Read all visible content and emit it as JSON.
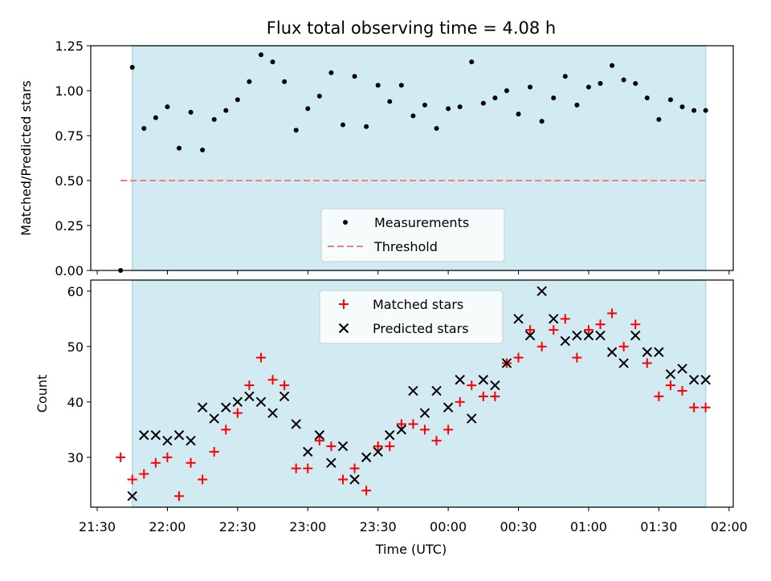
{
  "figure": {
    "title": "Flux total observing time = 4.08 h",
    "xlabel": "Time (UTC)"
  },
  "colors": {
    "shade": "#add8e6",
    "threshold": "#f08080",
    "matched": "#ff0000",
    "predicted": "#000000",
    "measurements": "#000000"
  },
  "chart_data": [
    {
      "type": "scatter",
      "panel": "top",
      "ylabel": "Matched/Predicted stars",
      "ylim": [
        0,
        1.25
      ],
      "yticks": [
        "0.00",
        "0.25",
        "0.50",
        "0.75",
        "1.00",
        "1.25"
      ],
      "xticks": [
        "21:30",
        "22:00",
        "22:30",
        "23:00",
        "23:30",
        "00:00",
        "00:30",
        "01:00",
        "01:30",
        "02:00"
      ],
      "shaded_span": [
        "21:45",
        "01:50"
      ],
      "legend": {
        "placement": "lower center",
        "entries": [
          "Measurements",
          "Threshold"
        ]
      },
      "series": [
        {
          "name": "Measurements",
          "marker": "dot",
          "x": [
            "21:40",
            "21:45",
            "21:50",
            "21:55",
            "22:00",
            "22:05",
            "22:10",
            "22:15",
            "22:20",
            "22:25",
            "22:30",
            "22:35",
            "22:40",
            "22:45",
            "22:50",
            "22:55",
            "23:00",
            "23:05",
            "23:10",
            "23:15",
            "23:20",
            "23:25",
            "23:30",
            "23:35",
            "23:40",
            "23:45",
            "23:50",
            "23:55",
            "00:00",
            "00:05",
            "00:10",
            "00:15",
            "00:20",
            "00:25",
            "00:30",
            "00:35",
            "00:40",
            "00:45",
            "00:50",
            "00:55",
            "01:00",
            "01:05",
            "01:10",
            "01:15",
            "01:20",
            "01:25",
            "01:30",
            "01:35",
            "01:40",
            "01:45",
            "01:50"
          ],
          "y": [
            0.0,
            1.13,
            0.79,
            0.85,
            0.91,
            0.68,
            0.88,
            0.67,
            0.84,
            0.89,
            0.95,
            1.05,
            1.2,
            1.16,
            1.05,
            0.78,
            0.9,
            0.97,
            1.1,
            0.81,
            1.08,
            0.8,
            1.03,
            0.94,
            1.03,
            0.86,
            0.92,
            0.79,
            0.9,
            0.91,
            1.16,
            0.93,
            0.96,
            1.0,
            0.87,
            1.02,
            0.83,
            0.96,
            1.08,
            0.92,
            1.02,
            1.04,
            1.14,
            1.06,
            1.04,
            0.96,
            0.84,
            0.95,
            0.91,
            0.89,
            0.89
          ]
        },
        {
          "name": "Threshold",
          "style": "dashed",
          "x": [
            "21:40",
            "01:50"
          ],
          "y": [
            0.5,
            0.5
          ]
        }
      ]
    },
    {
      "type": "scatter",
      "panel": "bottom",
      "ylabel": "Count",
      "ylim": [
        21,
        62
      ],
      "yticks": [
        "30",
        "40",
        "50",
        "60"
      ],
      "xticks": [
        "21:30",
        "22:00",
        "22:30",
        "23:00",
        "23:30",
        "00:00",
        "00:30",
        "01:00",
        "01:30",
        "02:00"
      ],
      "shaded_span": [
        "21:45",
        "01:50"
      ],
      "legend": {
        "placement": "upper center",
        "entries": [
          "Matched stars",
          "Predicted stars"
        ]
      },
      "series": [
        {
          "name": "Matched stars",
          "marker": "plus",
          "x": [
            "21:40",
            "21:45",
            "21:50",
            "21:55",
            "22:00",
            "22:05",
            "22:10",
            "22:15",
            "22:20",
            "22:25",
            "22:30",
            "22:35",
            "22:40",
            "22:45",
            "22:50",
            "22:55",
            "23:00",
            "23:05",
            "23:10",
            "23:15",
            "23:20",
            "23:25",
            "23:30",
            "23:35",
            "23:40",
            "23:45",
            "23:50",
            "23:55",
            "00:00",
            "00:05",
            "00:10",
            "00:15",
            "00:20",
            "00:25",
            "00:30",
            "00:35",
            "00:40",
            "00:45",
            "00:50",
            "00:55",
            "01:00",
            "01:05",
            "01:10",
            "01:15",
            "01:20",
            "01:25",
            "01:30",
            "01:35",
            "01:40",
            "01:45",
            "01:50"
          ],
          "y": [
            30,
            26,
            27,
            29,
            30,
            23,
            29,
            26,
            31,
            35,
            38,
            43,
            48,
            44,
            43,
            28,
            28,
            33,
            32,
            26,
            28,
            24,
            32,
            32,
            36,
            36,
            35,
            33,
            35,
            40,
            43,
            41,
            41,
            47,
            48,
            53,
            50,
            53,
            55,
            48,
            53,
            54,
            56,
            50,
            54,
            47,
            41,
            43,
            42,
            39,
            39
          ]
        },
        {
          "name": "Predicted stars",
          "marker": "x",
          "x": [
            "21:45",
            "21:50",
            "21:55",
            "22:00",
            "22:05",
            "22:10",
            "22:15",
            "22:20",
            "22:25",
            "22:30",
            "22:35",
            "22:40",
            "22:45",
            "22:50",
            "22:55",
            "23:00",
            "23:05",
            "23:10",
            "23:15",
            "23:20",
            "23:25",
            "23:30",
            "23:35",
            "23:40",
            "23:45",
            "23:50",
            "23:55",
            "00:00",
            "00:05",
            "00:10",
            "00:15",
            "00:20",
            "00:25",
            "00:30",
            "00:35",
            "00:40",
            "00:45",
            "00:50",
            "00:55",
            "01:00",
            "01:05",
            "01:10",
            "01:15",
            "01:20",
            "01:25",
            "01:30",
            "01:35",
            "01:40",
            "01:45",
            "01:50"
          ],
          "y": [
            23,
            34,
            34,
            33,
            34,
            33,
            39,
            37,
            39,
            40,
            41,
            40,
            38,
            41,
            36,
            31,
            34,
            29,
            32,
            26,
            30,
            31,
            34,
            35,
            42,
            38,
            42,
            39,
            44,
            37,
            44,
            43,
            47,
            55,
            52,
            60,
            55,
            51,
            52,
            52,
            52,
            49,
            47,
            52,
            49,
            49,
            45,
            46,
            44,
            44
          ]
        }
      ]
    }
  ]
}
